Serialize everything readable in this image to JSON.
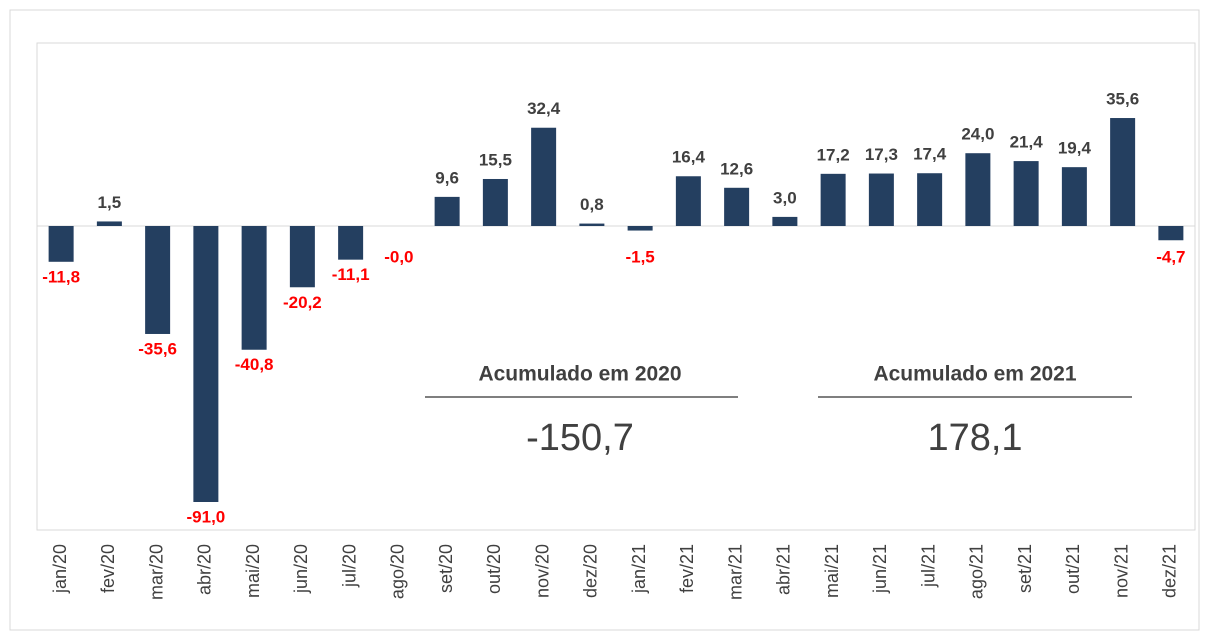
{
  "chart_data": {
    "type": "bar",
    "categories": [
      "jan/20",
      "fev/20",
      "mar/20",
      "abr/20",
      "mai/20",
      "jun/20",
      "jul/20",
      "ago/20",
      "set/20",
      "out/20",
      "nov/20",
      "dez/20",
      "jan/21",
      "fev/21",
      "mar/21",
      "abr/21",
      "mai/21",
      "jun/21",
      "jul/21",
      "ago/21",
      "set/21",
      "out/21",
      "nov/21",
      "dez/21"
    ],
    "values": [
      -11.8,
      1.5,
      -35.6,
      -91.0,
      -40.8,
      -20.2,
      -11.1,
      0,
      9.6,
      15.5,
      32.4,
      0.8,
      -1.5,
      16.4,
      12.6,
      3.0,
      17.2,
      17.3,
      17.4,
      24.0,
      21.4,
      19.4,
      35.6,
      -4.7
    ],
    "value_labels": [
      "-11,8",
      "1,5",
      "-35,6",
      "-91,0",
      "-40,8",
      "-20,2",
      "-11,1",
      "-0,0",
      "9,6",
      "15,5",
      "32,4",
      "0,8",
      "-1,5",
      "16,4",
      "12,6",
      "3,0",
      "17,2",
      "17,3",
      "17,4",
      "24,0",
      "21,4",
      "19,4",
      "35,6",
      "-4,7"
    ],
    "color": "#243f60",
    "annotations": [
      {
        "title": "Acumulado em 2020",
        "value": "-150,7"
      },
      {
        "title": "Acumulado em 2021",
        "value": "178,1"
      }
    ]
  }
}
